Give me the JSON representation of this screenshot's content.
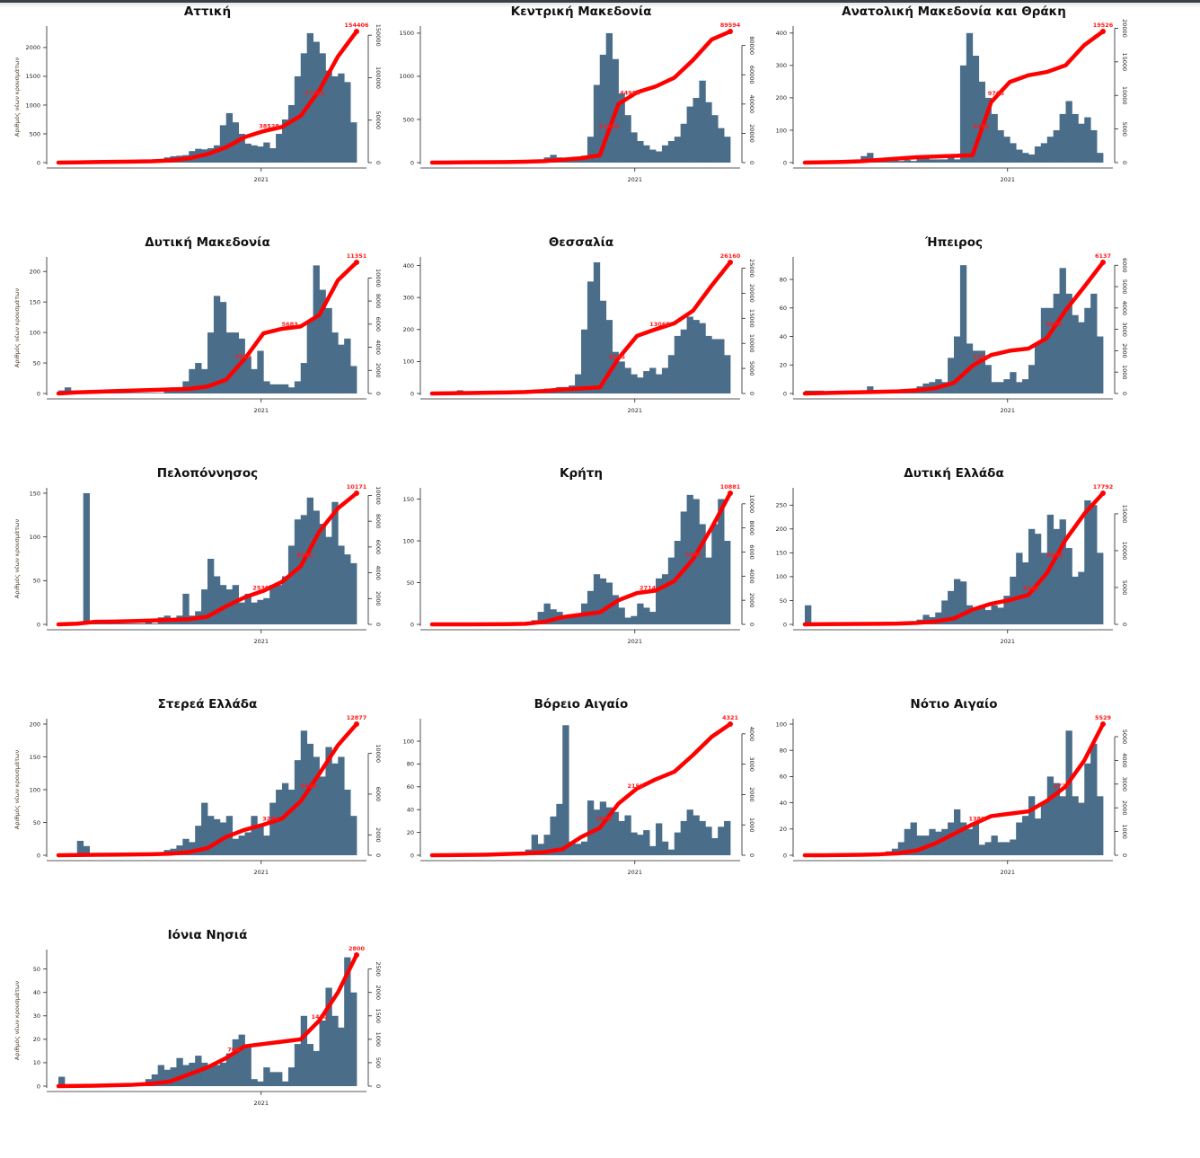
{
  "colors": {
    "bars": "#4a6d8a",
    "cumulative": "#ff0000",
    "annotation": "#ff1a1a"
  },
  "chart_data": [
    {
      "type": "bar+line",
      "title": "Αττική",
      "ylabel": "Αριθμός νέων κρουσμάτων",
      "xtick_label": "2021",
      "left_ticks": [
        0,
        500,
        1000,
        1500,
        2000
      ],
      "ylim_left": [
        0,
        2280
      ],
      "right_ticks": [
        0,
        50000,
        100000,
        150000
      ],
      "ylim_right": [
        0,
        154406
      ],
      "bars": [
        25,
        30,
        10,
        5,
        5,
        5,
        5,
        5,
        5,
        5,
        5,
        5,
        5,
        5,
        10,
        30,
        60,
        90,
        110,
        120,
        130,
        200,
        240,
        230,
        250,
        300,
        650,
        860,
        700,
        500,
        330,
        300,
        280,
        350,
        250,
        500,
        750,
        1000,
        1500,
        1900,
        2250,
        2100,
        1900,
        1600,
        1500,
        1550,
        1400,
        700
      ],
      "cumulative": [
        0,
        300,
        600,
        900,
        1200,
        1600,
        2500,
        5000,
        10000,
        18000,
        30000,
        37000,
        42000,
        55000,
        85000,
        125000,
        154406
      ],
      "annotations": [
        {
          "label": "38528",
          "value": 38528
        },
        {
          "label": "77203",
          "value": 77203
        },
        {
          "label": "154406",
          "value": 154406
        }
      ]
    },
    {
      "type": "bar+line",
      "title": "Κεντρική Μακεδονία",
      "xtick_label": "2021",
      "left_ticks": [
        0,
        500,
        1000,
        1500
      ],
      "ylim_left": [
        0,
        1520
      ],
      "right_ticks": [
        0,
        20000,
        40000,
        60000,
        80000
      ],
      "ylim_right": [
        0,
        89594
      ],
      "bars": [
        5,
        5,
        5,
        5,
        5,
        5,
        5,
        5,
        5,
        5,
        5,
        5,
        5,
        5,
        5,
        5,
        5,
        5,
        60,
        90,
        60,
        40,
        50,
        60,
        80,
        300,
        900,
        1250,
        1500,
        1200,
        800,
        550,
        350,
        250,
        200,
        150,
        130,
        200,
        250,
        300,
        450,
        650,
        750,
        950,
        700,
        550,
        400,
        300
      ],
      "cumulative": [
        0,
        100,
        200,
        300,
        400,
        600,
        1000,
        2000,
        3000,
        5000,
        40000,
        48000,
        52000,
        58000,
        70000,
        84000,
        89594
      ],
      "annotations": [
        {
          "label": "21950",
          "value": 21950
        },
        {
          "label": "44988",
          "value": 44988
        },
        {
          "label": "89594",
          "value": 89594
        }
      ]
    },
    {
      "type": "bar+line",
      "title": "Ανατολική Μακεδονία και Θράκη",
      "xtick_label": "2021",
      "left_ticks": [
        0,
        100,
        200,
        300,
        400
      ],
      "ylim_left": [
        0,
        405
      ],
      "right_ticks": [
        0,
        5000,
        10000,
        15000,
        20000
      ],
      "ylim_right": [
        0,
        19526
      ],
      "bars": [
        3,
        3,
        3,
        3,
        3,
        3,
        3,
        3,
        3,
        20,
        30,
        5,
        8,
        5,
        8,
        5,
        8,
        5,
        15,
        20,
        10,
        10,
        10,
        20,
        10,
        300,
        400,
        330,
        250,
        200,
        150,
        100,
        80,
        60,
        40,
        30,
        25,
        50,
        60,
        80,
        100,
        150,
        190,
        150,
        120,
        140,
        100,
        30
      ],
      "cumulative": [
        0,
        50,
        100,
        200,
        400,
        600,
        800,
        900,
        1000,
        1100,
        9000,
        12000,
        13000,
        13500,
        14500,
        17500,
        19526
      ],
      "annotations": [
        {
          "label": "4782",
          "value": 4782
        },
        {
          "label": "9766",
          "value": 9766
        },
        {
          "label": "19526",
          "value": 19526
        }
      ]
    },
    {
      "type": "bar+line",
      "title": "Δυτική Μακεδονία",
      "ylabel": "Αριθμός νέων κρουσμάτων",
      "xtick_label": "2021",
      "left_ticks": [
        0,
        50,
        100,
        150,
        200
      ],
      "ylim_left": [
        0,
        215
      ],
      "right_ticks": [
        0,
        2000,
        4000,
        6000,
        8000,
        10000
      ],
      "ylim_right": [
        0,
        11351
      ],
      "bars": [
        5,
        10,
        5,
        3,
        1,
        1,
        1,
        1,
        1,
        1,
        1,
        1,
        1,
        1,
        1,
        1,
        1,
        5,
        10,
        5,
        20,
        40,
        50,
        40,
        100,
        160,
        150,
        100,
        100,
        90,
        60,
        40,
        70,
        20,
        15,
        15,
        15,
        10,
        20,
        50,
        120,
        210,
        170,
        140,
        100,
        80,
        90,
        45
      ],
      "cumulative": [
        0,
        100,
        150,
        200,
        250,
        300,
        350,
        400,
        600,
        1200,
        3000,
        5200,
        5600,
        5800,
        6800,
        9800,
        11351
      ],
      "annotations": [
        {
          "label": "2866",
          "value": 2866
        },
        {
          "label": "5683",
          "value": 5683
        },
        {
          "label": "11351",
          "value": 11351
        }
      ]
    },
    {
      "type": "bar+line",
      "title": "Θεσσαλία",
      "xtick_label": "2021",
      "left_ticks": [
        0,
        100,
        200,
        300,
        400
      ],
      "ylim_left": [
        0,
        410
      ],
      "right_ticks": [
        0,
        5000,
        10000,
        15000,
        20000,
        25000
      ],
      "ylim_right": [
        0,
        26160
      ],
      "bars": [
        3,
        5,
        3,
        3,
        10,
        5,
        3,
        3,
        3,
        3,
        3,
        3,
        3,
        3,
        3,
        3,
        3,
        3,
        15,
        15,
        20,
        20,
        25,
        60,
        200,
        350,
        410,
        290,
        230,
        130,
        100,
        80,
        60,
        50,
        70,
        80,
        60,
        80,
        120,
        180,
        200,
        240,
        230,
        220,
        180,
        170,
        170,
        120
      ],
      "cumulative": [
        0,
        50,
        100,
        150,
        200,
        300,
        500,
        800,
        1000,
        1200,
        7000,
        11500,
        12800,
        14000,
        16500,
        21500,
        26160
      ],
      "annotations": [
        {
          "label": "6545",
          "value": 6545
        },
        {
          "label": "13065",
          "value": 13065
        },
        {
          "label": "26160",
          "value": 26160
        }
      ]
    },
    {
      "type": "bar+line",
      "title": "Ήπειρος",
      "xtick_label": "2021",
      "left_ticks": [
        0,
        20,
        40,
        60,
        80
      ],
      "ylim_left": [
        0,
        92
      ],
      "right_ticks": [
        0,
        1000,
        2000,
        3000,
        4000,
        5000,
        6000
      ],
      "ylim_right": [
        0,
        6137
      ],
      "bars": [
        2,
        2,
        2,
        1,
        1,
        1,
        1,
        1,
        1,
        1,
        5,
        1,
        1,
        1,
        1,
        1,
        1,
        1,
        5,
        7,
        8,
        10,
        8,
        25,
        40,
        90,
        35,
        30,
        30,
        20,
        8,
        8,
        10,
        15,
        8,
        10,
        20,
        35,
        60,
        60,
        70,
        88,
        70,
        55,
        50,
        60,
        70,
        40
      ],
      "cumulative": [
        0,
        20,
        40,
        60,
        80,
        100,
        150,
        250,
        500,
        1300,
        1800,
        2000,
        2100,
        2600,
        3900,
        5000,
        6137
      ],
      "annotations": [
        {
          "label": "1535",
          "value": 1535
        },
        {
          "label": "3070",
          "value": 3070
        },
        {
          "label": "6137",
          "value": 6137
        }
      ]
    },
    {
      "type": "bar+line",
      "title": "Πελοπόννησος",
      "ylabel": "Αριθμός νέων κρουσμάτων",
      "xtick_label": "2021",
      "left_ticks": [
        0,
        50,
        100,
        150
      ],
      "ylim_left": [
        0,
        150
      ],
      "right_ticks": [
        0,
        2000,
        4000,
        6000,
        8000,
        10000
      ],
      "ylim_right": [
        0,
        10171
      ],
      "bars": [
        1,
        1,
        1,
        1,
        150,
        1,
        1,
        1,
        1,
        1,
        1,
        1,
        1,
        1,
        5,
        1,
        8,
        10,
        5,
        10,
        35,
        10,
        15,
        40,
        75,
        55,
        45,
        40,
        45,
        25,
        35,
        25,
        28,
        30,
        45,
        45,
        55,
        90,
        120,
        125,
        145,
        130,
        115,
        100,
        140,
        90,
        80,
        70
      ],
      "cumulative": [
        0,
        50,
        200,
        220,
        250,
        300,
        350,
        400,
        600,
        1400,
        2100,
        2600,
        3300,
        4500,
        7200,
        9000,
        10171
      ],
      "annotations": [
        {
          "label": "2530",
          "value": 2530
        },
        {
          "label": "5086",
          "value": 5086
        },
        {
          "label": "10171",
          "value": 10171
        }
      ]
    },
    {
      "type": "bar+line",
      "title": "Κρήτη",
      "xtick_label": "2021",
      "left_ticks": [
        0,
        50,
        100,
        150
      ],
      "ylim_left": [
        0,
        157
      ],
      "right_ticks": [
        0,
        2000,
        4000,
        6000,
        8000,
        10000
      ],
      "ylim_right": [
        0,
        10881
      ],
      "bars": [
        1,
        1,
        1,
        1,
        1,
        1,
        1,
        1,
        1,
        1,
        1,
        1,
        1,
        1,
        1,
        1,
        5,
        15,
        25,
        18,
        15,
        10,
        12,
        10,
        25,
        40,
        60,
        55,
        50,
        35,
        20,
        8,
        10,
        25,
        20,
        15,
        55,
        60,
        80,
        100,
        135,
        155,
        150,
        120,
        80,
        120,
        150,
        100
      ],
      "cumulative": [
        0,
        0,
        0,
        10,
        20,
        50,
        200,
        600,
        800,
        1000,
        2000,
        2600,
        2800,
        3600,
        5400,
        8000,
        10881
      ],
      "annotations": [
        {
          "label": "2714",
          "value": 2714
        },
        {
          "label": "5481",
          "value": 5481
        },
        {
          "label": "10881",
          "value": 10881
        }
      ]
    },
    {
      "type": "bar+line",
      "title": "Δυτική Ελλάδα",
      "xtick_label": "2021",
      "left_ticks": [
        0,
        50,
        100,
        150,
        200,
        250
      ],
      "ylim_left": [
        0,
        275
      ],
      "right_ticks": [
        0,
        5000,
        10000,
        15000
      ],
      "ylim_right": [
        0,
        17792
      ],
      "bars": [
        40,
        1,
        1,
        1,
        1,
        1,
        1,
        1,
        1,
        1,
        1,
        1,
        1,
        1,
        1,
        1,
        1,
        5,
        10,
        20,
        15,
        25,
        50,
        70,
        95,
        90,
        40,
        35,
        40,
        30,
        40,
        35,
        60,
        100,
        150,
        130,
        200,
        190,
        150,
        230,
        200,
        220,
        160,
        100,
        110,
        260,
        250,
        150
      ],
      "cumulative": [
        0,
        30,
        40,
        60,
        80,
        100,
        200,
        400,
        800,
        2000,
        2800,
        3300,
        4000,
        7000,
        11500,
        15000,
        17792
      ],
      "annotations": [
        {
          "label": "4395",
          "value": 4395
        },
        {
          "label": "8898",
          "value": 8898
        },
        {
          "label": "17792",
          "value": 17792
        }
      ]
    },
    {
      "type": "bar+line",
      "title": "Στερεά Ελλάδα",
      "ylabel": "Αριθμός νέων κρουσμάτων",
      "xtick_label": "2021",
      "left_ticks": [
        0,
        50,
        100,
        150,
        200
      ],
      "ylim_left": [
        0,
        200
      ],
      "right_ticks": [
        0,
        2000,
        6000,
        10000
      ],
      "ylim_right": [
        0,
        12877
      ],
      "bars": [
        1,
        1,
        1,
        22,
        14,
        2,
        2,
        2,
        2,
        2,
        2,
        2,
        2,
        2,
        2,
        2,
        2,
        8,
        10,
        15,
        25,
        20,
        45,
        80,
        60,
        55,
        50,
        60,
        25,
        30,
        35,
        60,
        45,
        30,
        80,
        100,
        110,
        100,
        145,
        190,
        170,
        150,
        120,
        165,
        140,
        150,
        100,
        60
      ],
      "cumulative": [
        0,
        20,
        40,
        60,
        80,
        100,
        150,
        300,
        700,
        1800,
        2500,
        3000,
        3600,
        5300,
        8000,
        10800,
        12877
      ],
      "annotations": [
        {
          "label": "3230",
          "value": 3230
        },
        {
          "label": "6439",
          "value": 6439
        },
        {
          "label": "12877",
          "value": 12877
        }
      ]
    },
    {
      "type": "bar+line",
      "title": "Βόρειο Αιγαίο",
      "xtick_label": "2021",
      "left_ticks": [
        0,
        20,
        40,
        60,
        80,
        100
      ],
      "ylim_left": [
        0,
        115
      ],
      "right_ticks": [
        0,
        1000,
        2000,
        3000,
        4000
      ],
      "ylim_right": [
        0,
        4321
      ],
      "bars": [
        1,
        1,
        1,
        1,
        1,
        1,
        1,
        1,
        1,
        1,
        1,
        1,
        1,
        1,
        3,
        5,
        18,
        10,
        18,
        34,
        45,
        114,
        12,
        10,
        12,
        48,
        40,
        47,
        42,
        38,
        30,
        35,
        20,
        18,
        22,
        8,
        28,
        12,
        5,
        20,
        30,
        40,
        35,
        30,
        25,
        15,
        25,
        30
      ],
      "cumulative": [
        0,
        5,
        10,
        20,
        40,
        60,
        100,
        200,
        600,
        900,
        1700,
        2200,
        2500,
        2750,
        3300,
        3900,
        4321
      ],
      "annotations": [
        {
          "label": "1078",
          "value": 1078
        },
        {
          "label": "2158",
          "value": 2158
        },
        {
          "label": "4321",
          "value": 4321
        }
      ]
    },
    {
      "type": "bar+line",
      "title": "Νότιο Αιγαίο",
      "xtick_label": "2021",
      "left_ticks": [
        0,
        20,
        40,
        60,
        80,
        100
      ],
      "ylim_left": [
        0,
        100
      ],
      "right_ticks": [
        0,
        1000,
        2000,
        3000,
        4000,
        5000
      ],
      "ylim_right": [
        0,
        5529
      ],
      "bars": [
        1,
        1,
        1,
        1,
        1,
        1,
        1,
        1,
        1,
        1,
        1,
        1,
        1,
        3,
        5,
        10,
        20,
        25,
        15,
        15,
        20,
        18,
        20,
        25,
        35,
        25,
        20,
        25,
        8,
        10,
        15,
        10,
        10,
        12,
        25,
        30,
        45,
        28,
        40,
        60,
        55,
        45,
        95,
        45,
        40,
        70,
        85,
        45
      ],
      "cumulative": [
        0,
        0,
        10,
        20,
        40,
        80,
        200,
        500,
        900,
        1300,
        1650,
        1750,
        1850,
        2300,
        2900,
        4000,
        5529
      ],
      "annotations": [
        {
          "label": "1380",
          "value": 1380
        },
        {
          "label": "2771",
          "value": 2771
        },
        {
          "label": "5529",
          "value": 5529
        }
      ]
    },
    {
      "type": "bar+line",
      "title": "Ιόνια Νησιά",
      "ylabel": "Αριθμός νέων κρουσμάτων",
      "xtick_label": "2021",
      "left_ticks": [
        0,
        10,
        20,
        30,
        40,
        50
      ],
      "ylim_left": [
        0,
        56
      ],
      "right_ticks": [
        0,
        500,
        1000,
        1500,
        2000,
        2500
      ],
      "ylim_right": [
        0,
        2800
      ],
      "bars": [
        4,
        0.5,
        0.5,
        0.5,
        0.5,
        0.5,
        0.5,
        0.5,
        0.5,
        0.5,
        0.5,
        0.5,
        0.5,
        0.5,
        3,
        5,
        9,
        7,
        8,
        12,
        9,
        10,
        13,
        10,
        9,
        9,
        10,
        14,
        20,
        22,
        17,
        3,
        2,
        8,
        6,
        6,
        2,
        8,
        18,
        30,
        18,
        15,
        28,
        42,
        30,
        25,
        55,
        40
      ],
      "cumulative": [
        0,
        5,
        10,
        20,
        30,
        50,
        100,
        250,
        400,
        600,
        850,
        900,
        950,
        1000,
        1400,
        2000,
        2800
      ],
      "annotations": [
        {
          "label": "700",
          "value": 700
        },
        {
          "label": "1400",
          "value": 1400
        },
        {
          "label": "2800",
          "value": 2800
        }
      ]
    }
  ]
}
